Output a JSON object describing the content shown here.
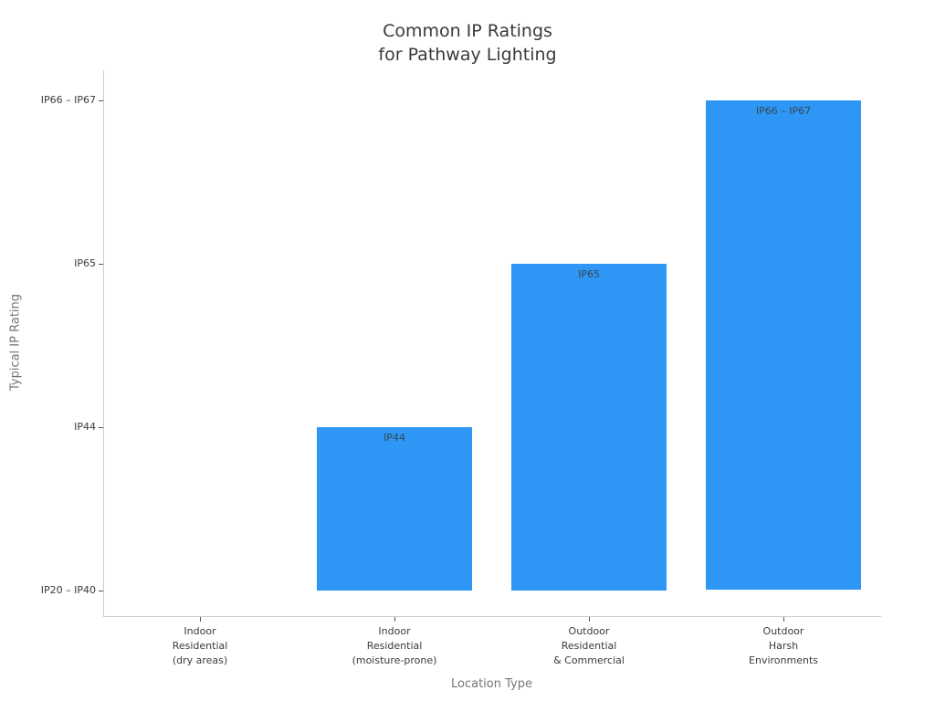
{
  "chart_data": {
    "type": "bar",
    "title_lines": [
      "Common IP Ratings",
      "for Pathway Lighting"
    ],
    "xlabel": "Location Type",
    "ylabel": "Typical IP Rating",
    "categories": [
      [
        "Indoor",
        "Residential",
        "(dry areas)"
      ],
      [
        "Indoor",
        "Residential",
        "(moisture-prone)"
      ],
      [
        "Outdoor",
        "Residential",
        "& Commercial"
      ],
      [
        "Outdoor",
        "Harsh",
        "Environments"
      ]
    ],
    "values": [
      1,
      2,
      3,
      4
    ],
    "value_labels": [
      "",
      "IP44",
      "IP65",
      "IP66 – IP67"
    ],
    "ytick_values": [
      1,
      2,
      3,
      4
    ],
    "ytick_labels": [
      "IP20 – IP40",
      "IP44",
      "IP65",
      "IP66 – IP67"
    ],
    "baseline_value": 1,
    "xlim": [
      -0.5,
      3.5
    ],
    "ylim": [
      0.843,
      4.187
    ],
    "bar_width_units": 0.8,
    "grid": false,
    "legend": false,
    "colors": {
      "bar": "#2e96f5",
      "bar_label": "#37474f",
      "title_text": "#3a3a3a",
      "tick_text": "#3b3b3b",
      "axis_title_text": "#757575",
      "spine": "#cccccc",
      "tick_mark": "#555555",
      "background": "#ffffff"
    }
  }
}
